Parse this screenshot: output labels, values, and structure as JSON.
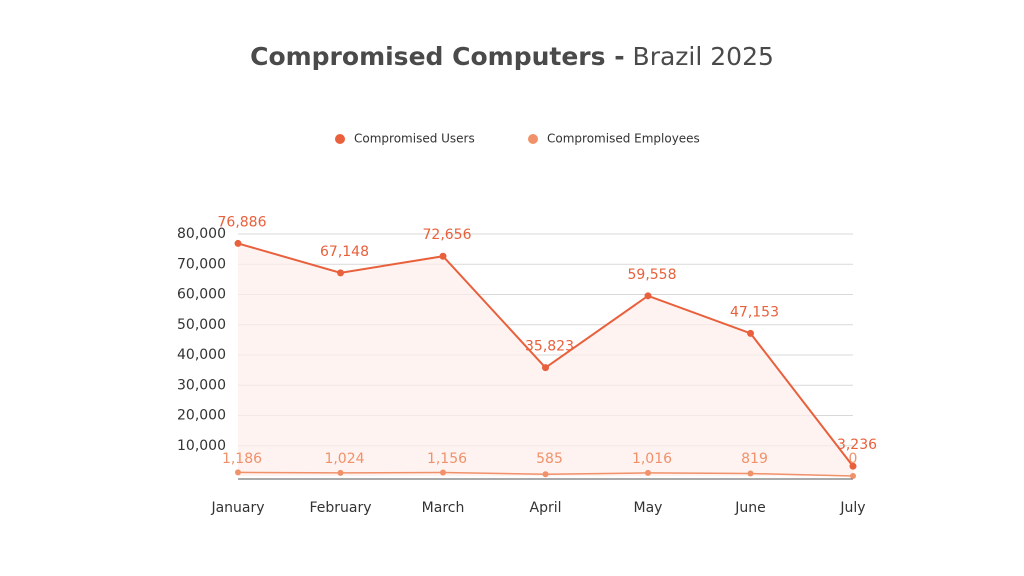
{
  "chart_data": {
    "type": "line",
    "title": [
      "Compromised Computers -",
      "Brazil 2025"
    ],
    "categories": [
      "January",
      "February",
      "March",
      "April",
      "May",
      "June",
      "July"
    ],
    "series": [
      {
        "name": "Compromised Users",
        "color": "#e8603c",
        "values": [
          76886,
          67148,
          72656,
          35823,
          59558,
          47153,
          3236
        ],
        "value_labels": [
          "76,886",
          "67,148",
          "72,656",
          "35,823",
          "59,558",
          "47,153",
          "3,236"
        ]
      },
      {
        "name": "Compromised Employees",
        "color": "#f0916a",
        "values": [
          1186,
          1024,
          1156,
          585,
          1016,
          819,
          0
        ],
        "value_labels": [
          "1,186",
          "1,024",
          "1,156",
          "585",
          "1,016",
          "819",
          "0"
        ]
      }
    ],
    "ylim": [
      0,
      80000
    ],
    "yticks": [
      {
        "value": 10000,
        "label": "10,000"
      },
      {
        "value": 20000,
        "label": "20,000"
      },
      {
        "value": 30000,
        "label": "30,000"
      },
      {
        "value": 40000,
        "label": "40,000"
      },
      {
        "value": 50000,
        "label": "50,000"
      },
      {
        "value": 60000,
        "label": "60,000"
      },
      {
        "value": 70000,
        "label": "70,000"
      },
      {
        "value": 80000,
        "label": "80,000"
      }
    ],
    "grid": true,
    "legend": "top",
    "area_fill": "#fdeeea"
  }
}
